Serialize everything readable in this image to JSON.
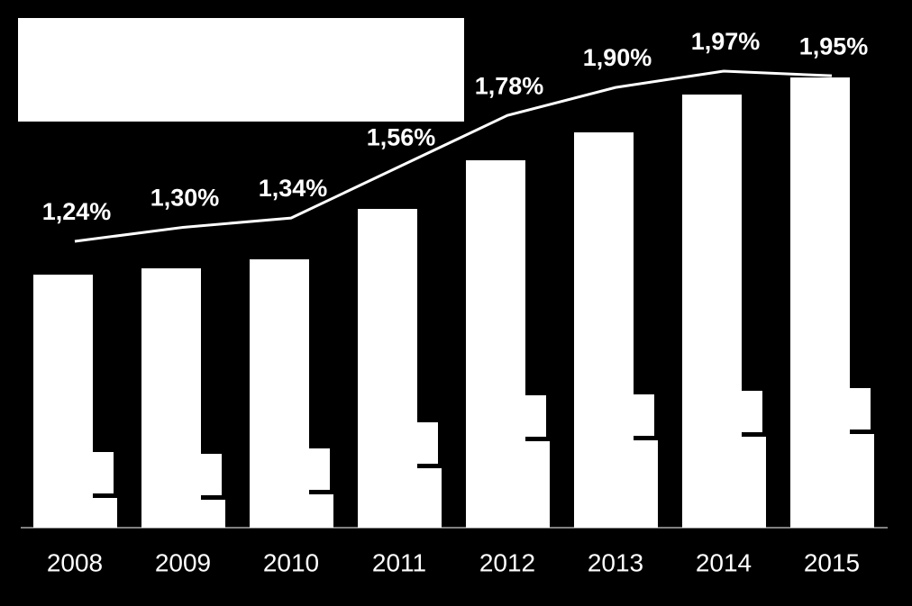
{
  "chart_data": {
    "type": "bar",
    "categories": [
      "2008",
      "2009",
      "2010",
      "2011",
      "2012",
      "2013",
      "2014",
      "2015"
    ],
    "series": [
      {
        "color": "#ffffff",
        "values": [
          281,
          288,
          298,
          354,
          408,
          439,
          481,
          500
        ]
      },
      {
        "color": "#ffffff",
        "values": [
          33,
          31,
          37,
          66,
          96,
          97,
          101,
          104
        ]
      },
      {
        "type": "line",
        "color": "#ffffff",
        "values": [
          1.24,
          1.3,
          1.34,
          1.56,
          1.78,
          1.9,
          1.97,
          1.95
        ],
        "value_labels": [
          "1,24%",
          "1,30%",
          "1,34%",
          "1,56%",
          "1,78%",
          "1,90%",
          "1,97%",
          "1,95%"
        ]
      }
    ]
  }
}
